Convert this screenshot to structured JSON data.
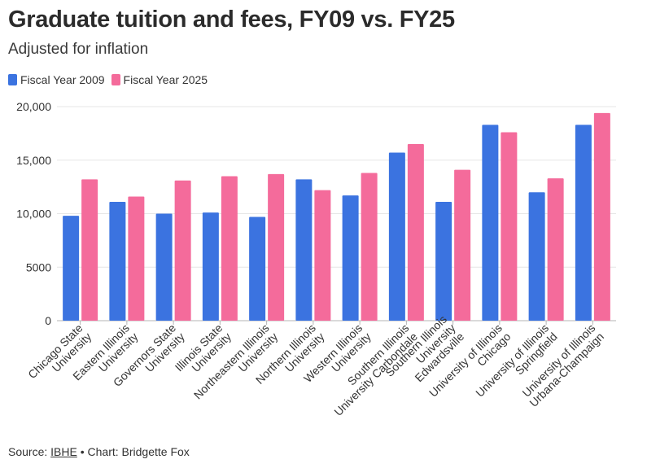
{
  "title": "Graduate tuition and fees, FY09 vs. FY25",
  "subtitle": "Adjusted for inflation",
  "footer": {
    "source_label": "Source:",
    "source_link": "IBHE",
    "credit": "• Chart: Bridgette Fox"
  },
  "colors": {
    "fy2009": "#3b73e0",
    "fy2025": "#f46b9b"
  },
  "chart_data": {
    "type": "bar",
    "title": "Graduate tuition and fees, FY09 vs. FY25",
    "subtitle": "Adjusted for inflation",
    "xlabel": "",
    "ylabel": "",
    "ylim": [
      0,
      20000
    ],
    "yticks": [
      0,
      5000,
      10000,
      15000,
      20000
    ],
    "ytick_labels": [
      "0",
      "5000",
      "10,000",
      "15,000",
      "20,000"
    ],
    "grid": true,
    "legend_position": "top-left",
    "categories": [
      [
        "Chicago State",
        "University"
      ],
      [
        "Eastern Illinois",
        "University"
      ],
      [
        "Governors State",
        "University"
      ],
      [
        "Illinois State",
        "University"
      ],
      [
        "Northeastern Illinois",
        "University"
      ],
      [
        "Northern Illinois",
        "University"
      ],
      [
        "Western Illinois",
        "University"
      ],
      [
        "Southern Illinois",
        "University Carbondale"
      ],
      [
        "Southern Illinois",
        "University",
        "Edwardsville"
      ],
      [
        "University of Illinois",
        "Chicago"
      ],
      [
        "University of Illinois",
        "Springfield"
      ],
      [
        "University of Illinois",
        "Urbana-Champaign"
      ]
    ],
    "series": [
      {
        "name": "Fiscal Year 2009",
        "color": "#3b73e0",
        "values": [
          9800,
          11100,
          10000,
          10100,
          9700,
          13200,
          11700,
          15700,
          11100,
          18300,
          12000,
          18300
        ]
      },
      {
        "name": "Fiscal Year 2025",
        "color": "#f46b9b",
        "values": [
          13200,
          11600,
          13100,
          13500,
          13700,
          12200,
          13800,
          16500,
          14100,
          17600,
          13300,
          19400
        ]
      }
    ]
  }
}
